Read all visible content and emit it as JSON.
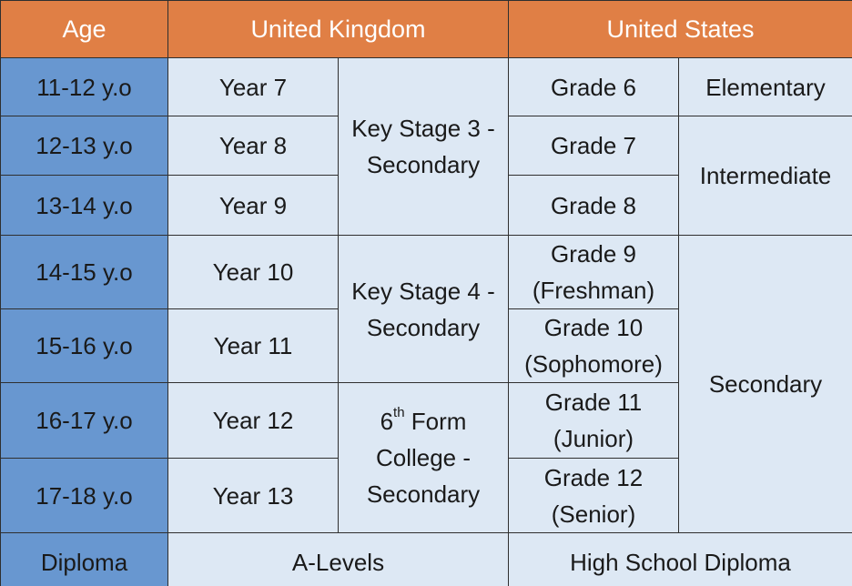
{
  "header": {
    "age": "Age",
    "uk": "United Kingdom",
    "us": "United States"
  },
  "rows": [
    {
      "age": "11-12 y.o",
      "uk_year": "Year 7",
      "us_grade": "Grade 6"
    },
    {
      "age": "12-13 y.o",
      "uk_year": "Year 8",
      "us_grade": "Grade 7"
    },
    {
      "age": "13-14 y.o",
      "uk_year": "Year 9",
      "us_grade": "Grade 8"
    },
    {
      "age": "14-15 y.o",
      "uk_year": "Year 10",
      "us_grade_line1": "Grade 9",
      "us_grade_line2": "(Freshman)"
    },
    {
      "age": "15-16 y.o",
      "uk_year": "Year 11",
      "us_grade_line1": "Grade 10",
      "us_grade_line2": "(Sophomore)"
    },
    {
      "age": "16-17 y.o",
      "uk_year": "Year 12",
      "us_grade_line1": "Grade 11",
      "us_grade_line2": "(Junior)"
    },
    {
      "age": "17-18 y.o",
      "uk_year": "Year 13",
      "us_grade_line1": "Grade 12",
      "us_grade_line2": "(Senior)"
    }
  ],
  "uk_stages": {
    "ks3_line1": "Key Stage 3 -",
    "ks3_line2": "Secondary",
    "ks4_line1": "Key Stage 4 -",
    "ks4_line2": "Secondary",
    "sixth_num": "6",
    "sixth_sup": "th",
    "sixth_rest": " Form",
    "sixth_line2": "College -",
    "sixth_line3": "Secondary"
  },
  "us_levels": {
    "elementary": "Elementary",
    "intermediate": "Intermediate",
    "secondary": "Secondary"
  },
  "diploma": {
    "label": "Diploma",
    "uk": "A-Levels",
    "us": "High School Diploma"
  },
  "colors": {
    "header_bg": "#e07f45",
    "age_bg": "#6897d0",
    "cell_bg": "#dde8f4",
    "border": "#2f2f2f"
  }
}
